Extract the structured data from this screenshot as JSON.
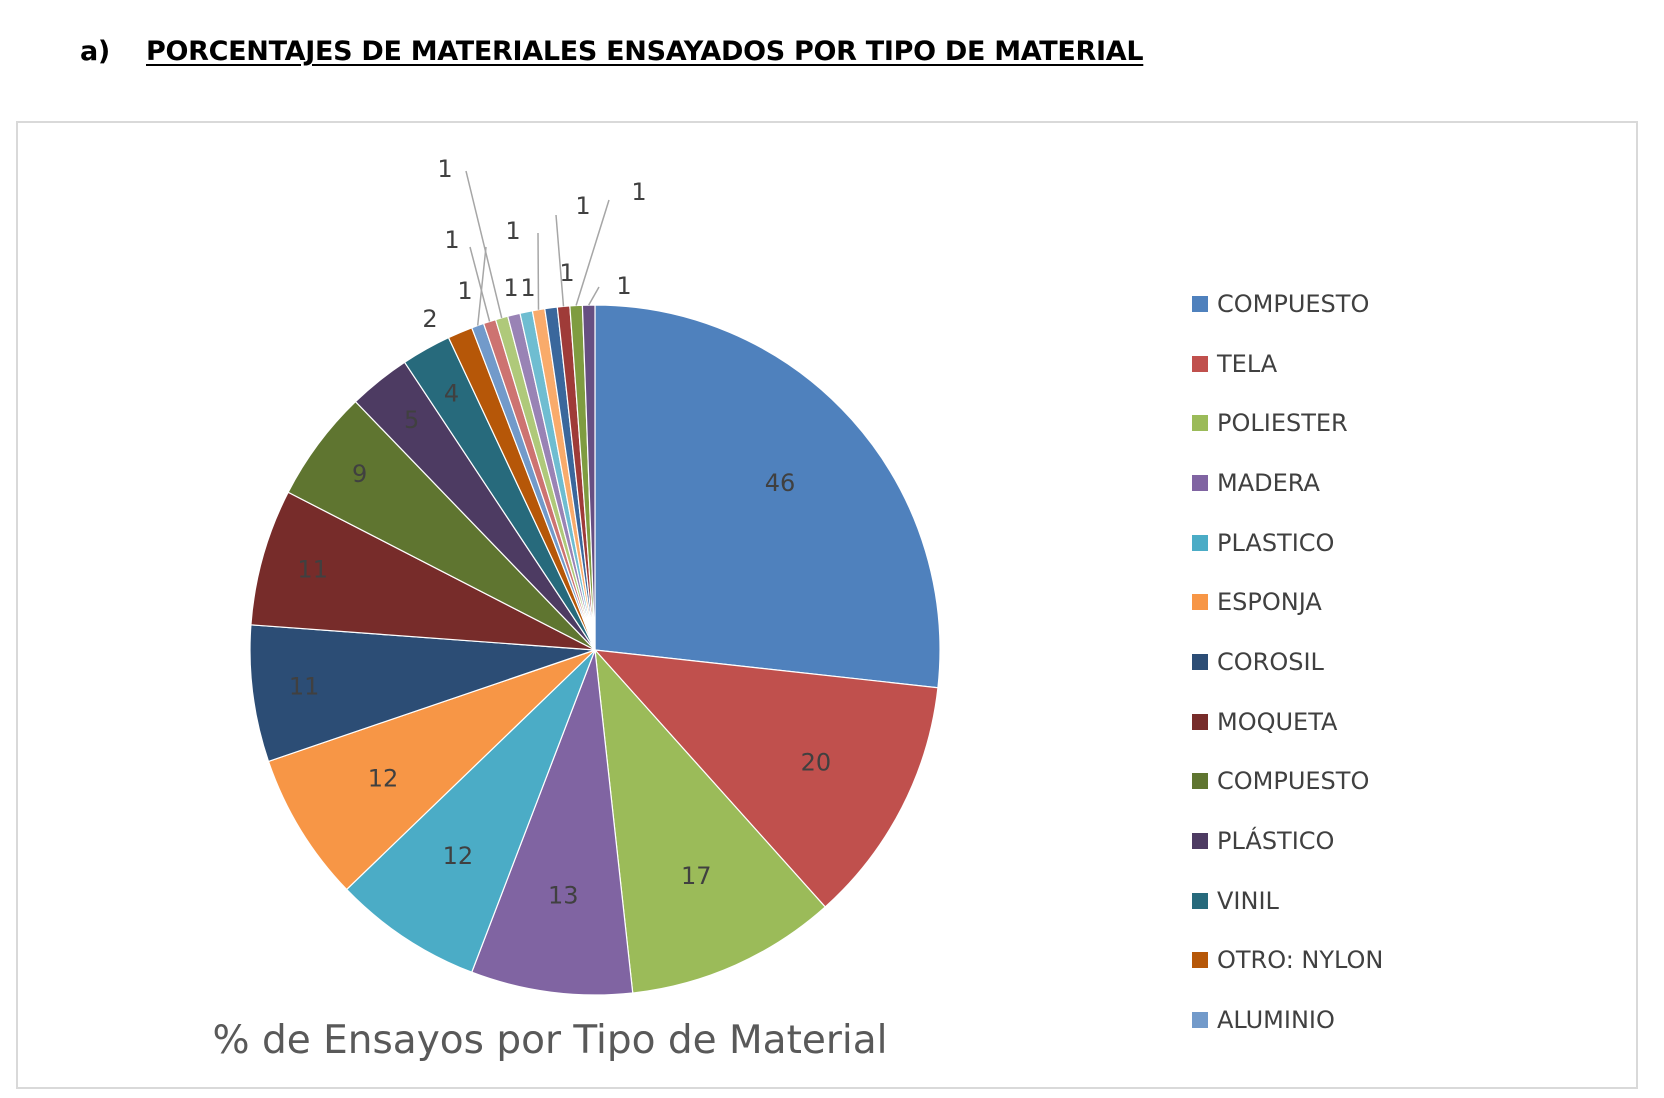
{
  "page": {
    "heading_number": "a)",
    "heading_text": "PORCENTAJES DE MATERIALES ENSAYADOS POR TIPO DE MATERIAL"
  },
  "chart_data": {
    "type": "pie",
    "title": "% de Ensayos por Tipo de Material",
    "legend_position": "right",
    "start_angle_deg": 0,
    "direction": "clockwise",
    "slices": [
      {
        "label": "COMPUESTO",
        "value": 46,
        "color": "#4F81BD"
      },
      {
        "label": "TELA",
        "value": 20,
        "color": "#C0504D"
      },
      {
        "label": "POLIESTER",
        "value": 17,
        "color": "#9BBB59"
      },
      {
        "label": "MADERA",
        "value": 13,
        "color": "#8064A2"
      },
      {
        "label": "PLASTICO",
        "value": 12,
        "color": "#4BACC6"
      },
      {
        "label": "ESPONJA",
        "value": 12,
        "color": "#F79646"
      },
      {
        "label": "COROSIL",
        "value": 11,
        "color": "#2C4D75"
      },
      {
        "label": "MOQUETA",
        "value": 11,
        "color": "#772C2A"
      },
      {
        "label": "COMPUESTO",
        "value": 9,
        "color": "#5F7530"
      },
      {
        "label": "PLÁSTICO",
        "value": 5,
        "color": "#4D3B62"
      },
      {
        "label": "VINIL",
        "value": 4,
        "color": "#276A7C"
      },
      {
        "label": "OTRO: NYLON",
        "value": 2,
        "color": "#B65708"
      },
      {
        "label": "ALUMINIO",
        "value": 1,
        "color": "#729ACA"
      },
      {
        "label": "",
        "value": 1,
        "color": "#CD7371"
      },
      {
        "label": "",
        "value": 1,
        "color": "#AFC97A"
      },
      {
        "label": "",
        "value": 1,
        "color": "#9983B5"
      },
      {
        "label": "",
        "value": 1,
        "color": "#6FBDD1"
      },
      {
        "label": "",
        "value": 1,
        "color": "#F9AB6B"
      },
      {
        "label": "",
        "value": 1,
        "color": "#3A679C"
      },
      {
        "label": "",
        "value": 1,
        "color": "#9F3B38"
      },
      {
        "label": "",
        "value": 1,
        "color": "#7F9C40"
      },
      {
        "label": "",
        "value": 1,
        "color": "#664F82"
      }
    ]
  }
}
